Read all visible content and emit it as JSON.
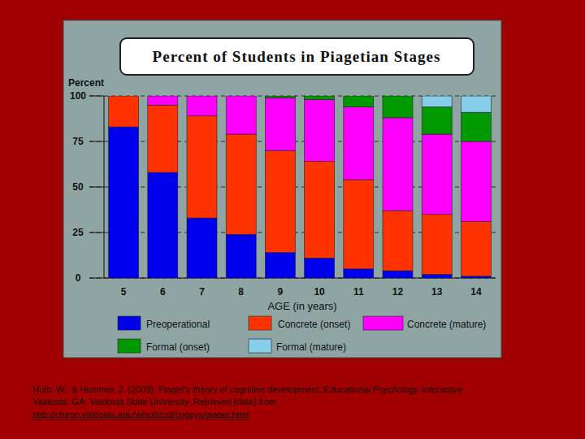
{
  "chart_data": {
    "type": "bar",
    "stacked": true,
    "grid": true,
    "title": "Percent of Students in Piagetian Stages",
    "y_label": "Percent",
    "x_label": "AGE (in years)",
    "categories": [
      "5",
      "6",
      "7",
      "8",
      "9",
      "10",
      "11",
      "12",
      "13",
      "14"
    ],
    "ylim": [
      0,
      100
    ],
    "yticks": [
      0,
      25,
      50,
      75,
      100
    ],
    "series": [
      {
        "name": "Preoperational",
        "color": "#0000ee",
        "values": [
          83,
          58,
          33,
          24,
          14,
          11,
          5,
          4,
          2,
          1
        ]
      },
      {
        "name": "Concrete (onset)",
        "color": "#ff3300",
        "values": [
          17,
          37,
          56,
          55,
          56,
          53,
          49,
          33,
          33,
          30
        ]
      },
      {
        "name": "Concrete (mature)",
        "color": "#ff00ff",
        "values": [
          0,
          5,
          11,
          21,
          29,
          34,
          40,
          51,
          44,
          44
        ]
      },
      {
        "name": "Formal (onset)",
        "color": "#009900",
        "values": [
          0,
          0,
          0,
          0,
          1,
          2,
          6,
          12,
          15,
          16
        ]
      },
      {
        "name": "Formal (mature)",
        "color": "#87ceeb",
        "values": [
          0,
          0,
          0,
          0,
          0,
          0,
          0,
          0,
          6,
          9
        ]
      }
    ]
  },
  "citation": {
    "lines": [
      [
        {
          "text": "Huitt, W., & Hummel, J. (2003). Piaget’s theory of cognitive development. ",
          "italic": false
        },
        {
          "text": "Educational Psychology Interactive.",
          "italic": true
        }
      ],
      [
        {
          "text": "Valdosta, GA: Valdosta State University. Retrieved [date] from",
          "italic": false
        }
      ],
      [
        {
          "text": "http://chiron.valdosta.edu/whuitt/col/cogsys/piaget.html",
          "italic": false
        }
      ]
    ]
  }
}
